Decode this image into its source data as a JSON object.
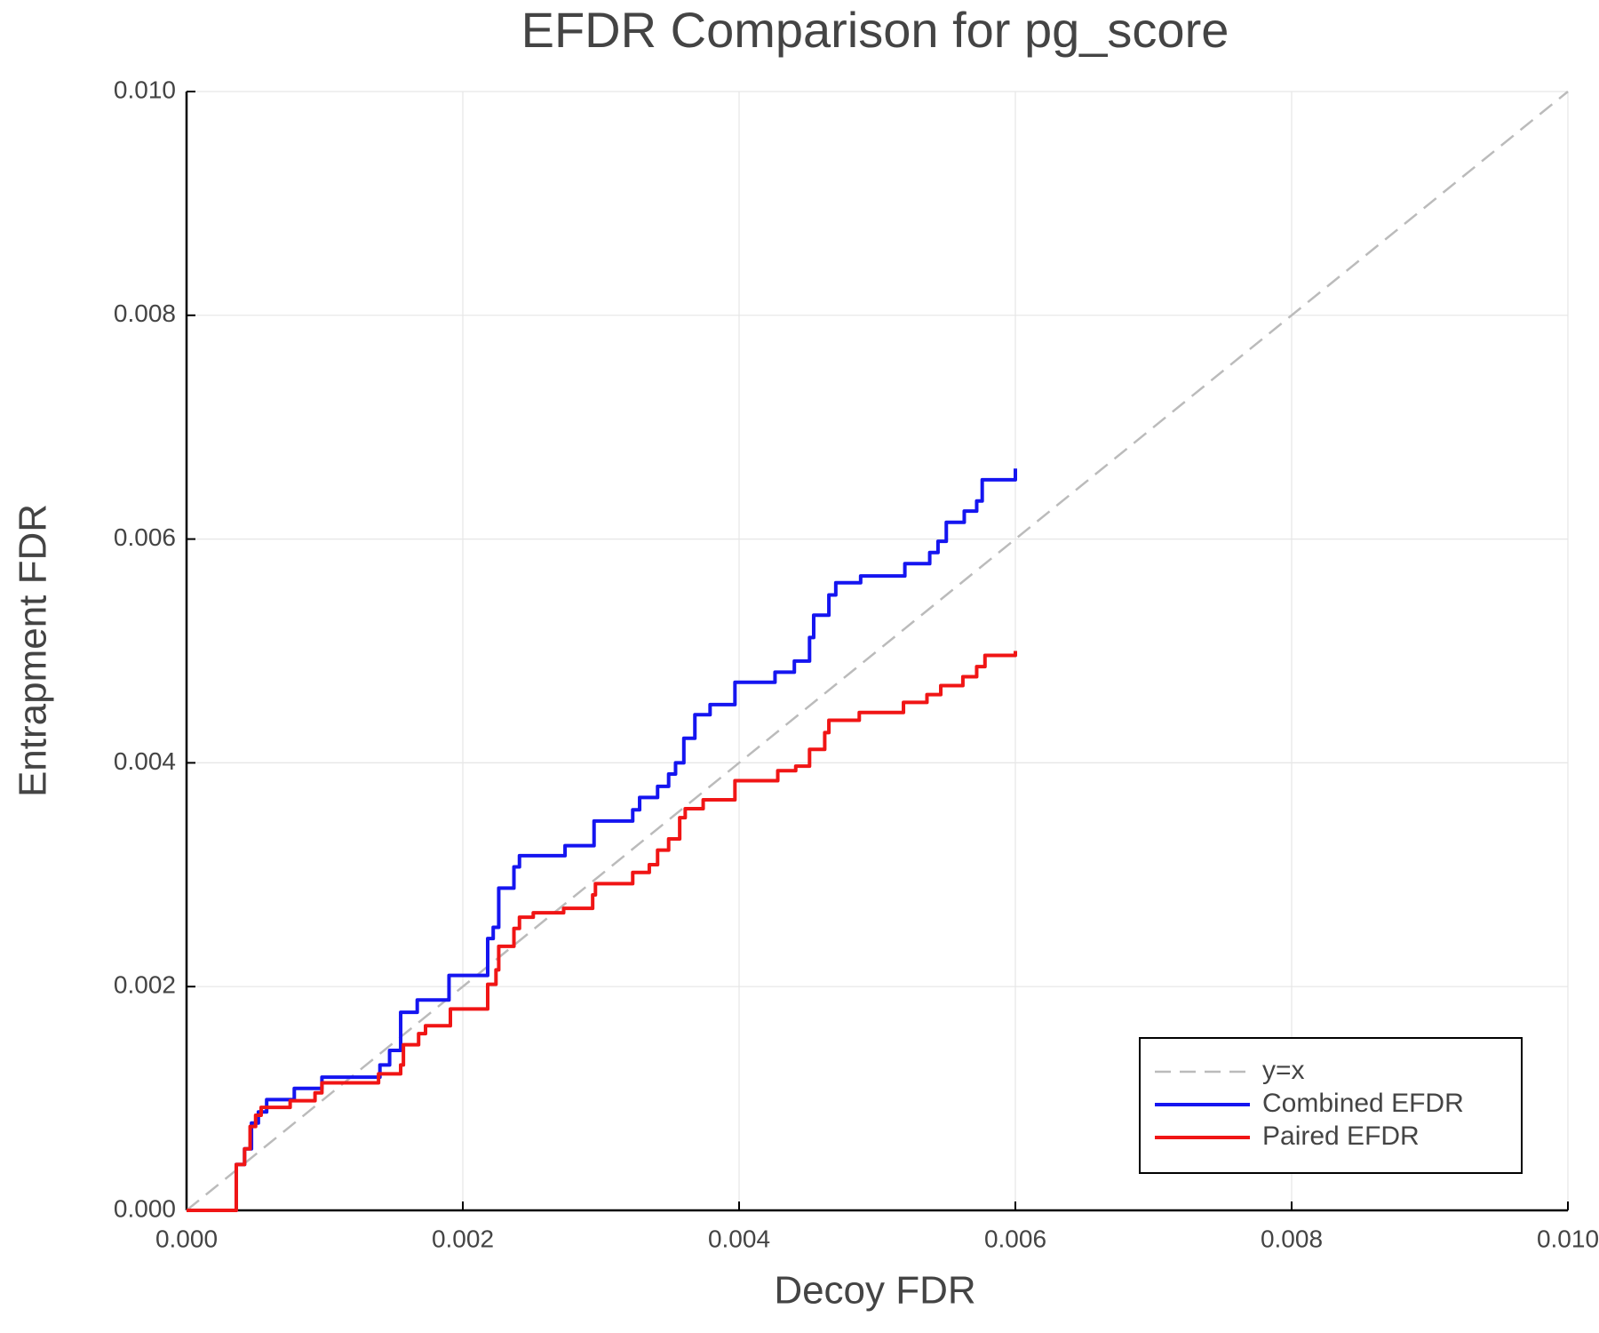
{
  "chart_data": {
    "type": "line",
    "title": "EFDR Comparison for pg_score",
    "xlabel": "Decoy FDR",
    "ylabel": "Entrapment FDR",
    "xlim": [
      0,
      0.01
    ],
    "ylim": [
      0,
      0.01
    ],
    "xticks": [
      {
        "value": 0,
        "label": "0.000"
      },
      0.002,
      0.004,
      0.006,
      0.008,
      {
        "value": 0.01,
        "label": "0.010"
      }
    ],
    "yticks": [
      {
        "value": 0,
        "label": "0.000"
      },
      0.002,
      0.004,
      0.006,
      0.008,
      {
        "value": 0.01,
        "label": "0.010"
      }
    ],
    "grid": true,
    "legend": "bottom right",
    "series": [
      {
        "name": "y=x",
        "color": "#bbbbbb",
        "dashed": true,
        "x": [
          0,
          0.01
        ],
        "values": [
          0,
          0.01
        ]
      },
      {
        "name": "Combined EFDR",
        "color": "#1515f0",
        "dashed": false,
        "x": [
          0,
          0.00036,
          0.00036,
          0.00042,
          0.00042,
          0.00047,
          0.00047,
          0.00052,
          0.00052,
          0.00058,
          0.00058,
          0.00078,
          0.00078,
          0.00098,
          0.00098,
          0.0014,
          0.0014,
          0.00147,
          0.00147,
          0.00155,
          0.00155,
          0.00167,
          0.00167,
          0.0019,
          0.0019,
          0.00218,
          0.00218,
          0.00222,
          0.00222,
          0.00226,
          0.00226,
          0.00237,
          0.00237,
          0.00241,
          0.00241,
          0.00274,
          0.00274,
          0.00295,
          0.00295,
          0.00323,
          0.00323,
          0.00328,
          0.00328,
          0.00341,
          0.00341,
          0.00349,
          0.00349,
          0.00354,
          0.00354,
          0.0036,
          0.0036,
          0.00368,
          0.00368,
          0.00379,
          0.00379,
          0.00397,
          0.00397,
          0.00426,
          0.00426,
          0.0044,
          0.0044,
          0.00451,
          0.00451,
          0.00454,
          0.00454,
          0.00465,
          0.00465,
          0.0047,
          0.0047,
          0.00488,
          0.00488,
          0.0052,
          0.0052,
          0.00538,
          0.00538,
          0.00544,
          0.00544,
          0.0055,
          0.0055,
          0.00563,
          0.00563,
          0.00572,
          0.00572,
          0.00576,
          0.00576,
          0.006,
          0.006
        ],
        "values": [
          0,
          0,
          0.00041,
          0.00041,
          0.00055,
          0.00055,
          0.00078,
          0.00078,
          0.00088,
          0.00088,
          0.00099,
          0.00099,
          0.00109,
          0.00109,
          0.00119,
          0.00119,
          0.0013,
          0.0013,
          0.00143,
          0.00143,
          0.00177,
          0.00177,
          0.00188,
          0.00188,
          0.0021,
          0.0021,
          0.00243,
          0.00243,
          0.00253,
          0.00253,
          0.00288,
          0.00288,
          0.00307,
          0.00307,
          0.00317,
          0.00317,
          0.00326,
          0.00326,
          0.00348,
          0.00348,
          0.00358,
          0.00358,
          0.00369,
          0.00369,
          0.00379,
          0.00379,
          0.0039,
          0.0039,
          0.004,
          0.004,
          0.00422,
          0.00422,
          0.00443,
          0.00443,
          0.00452,
          0.00452,
          0.00472,
          0.00472,
          0.00481,
          0.00481,
          0.00491,
          0.00491,
          0.00512,
          0.00512,
          0.00532,
          0.00532,
          0.0055,
          0.0055,
          0.00561,
          0.00561,
          0.00567,
          0.00567,
          0.00578,
          0.00578,
          0.00588,
          0.00588,
          0.00598,
          0.00598,
          0.00615,
          0.00615,
          0.00625,
          0.00625,
          0.00634,
          0.00634,
          0.00653,
          0.00653,
          0.00663
        ]
      },
      {
        "name": "Paired EFDR",
        "color": "#f01515",
        "dashed": false,
        "x": [
          0,
          0.00036,
          0.00036,
          0.00042,
          0.00042,
          0.00046,
          0.00046,
          0.0005,
          0.0005,
          0.00054,
          0.00054,
          0.00075,
          0.00075,
          0.00093,
          0.00093,
          0.00098,
          0.00098,
          0.00139,
          0.00139,
          0.00155,
          0.00155,
          0.00157,
          0.00157,
          0.00168,
          0.00168,
          0.00173,
          0.00173,
          0.00191,
          0.00191,
          0.00218,
          0.00218,
          0.00224,
          0.00224,
          0.00226,
          0.00226,
          0.00237,
          0.00237,
          0.00241,
          0.00241,
          0.00251,
          0.00251,
          0.00273,
          0.00273,
          0.00294,
          0.00294,
          0.00296,
          0.00296,
          0.00323,
          0.00323,
          0.00335,
          0.00335,
          0.00341,
          0.00341,
          0.00349,
          0.00349,
          0.00357,
          0.00357,
          0.00361,
          0.00361,
          0.00374,
          0.00374,
          0.00397,
          0.00397,
          0.00428,
          0.00428,
          0.00441,
          0.00441,
          0.00451,
          0.00451,
          0.00462,
          0.00462,
          0.00465,
          0.00465,
          0.00487,
          0.00487,
          0.00519,
          0.00519,
          0.00536,
          0.00536,
          0.00546,
          0.00546,
          0.00562,
          0.00562,
          0.00572,
          0.00572,
          0.00578,
          0.00578,
          0.006,
          0.006
        ],
        "values": [
          0,
          0,
          0.00041,
          0.00041,
          0.00055,
          0.00055,
          0.00075,
          0.00075,
          0.00085,
          0.00085,
          0.00092,
          0.00092,
          0.00098,
          0.00098,
          0.00105,
          0.00105,
          0.00114,
          0.00114,
          0.00122,
          0.00122,
          0.0013,
          0.0013,
          0.00148,
          0.00148,
          0.00158,
          0.00158,
          0.00165,
          0.00165,
          0.0018,
          0.0018,
          0.00202,
          0.00202,
          0.00215,
          0.00215,
          0.00236,
          0.00236,
          0.00252,
          0.00252,
          0.00262,
          0.00262,
          0.00266,
          0.00266,
          0.0027,
          0.0027,
          0.00282,
          0.00282,
          0.00292,
          0.00292,
          0.00302,
          0.00302,
          0.00309,
          0.00309,
          0.00322,
          0.00322,
          0.00332,
          0.00332,
          0.00351,
          0.00351,
          0.00359,
          0.00359,
          0.00367,
          0.00367,
          0.00384,
          0.00384,
          0.00393,
          0.00393,
          0.00397,
          0.00397,
          0.00412,
          0.00412,
          0.00427,
          0.00427,
          0.00438,
          0.00438,
          0.00445,
          0.00445,
          0.00454,
          0.00454,
          0.00461,
          0.00461,
          0.00469,
          0.00469,
          0.00477,
          0.00477,
          0.00486,
          0.00486,
          0.00496,
          0.00496,
          0.005
        ]
      }
    ]
  }
}
